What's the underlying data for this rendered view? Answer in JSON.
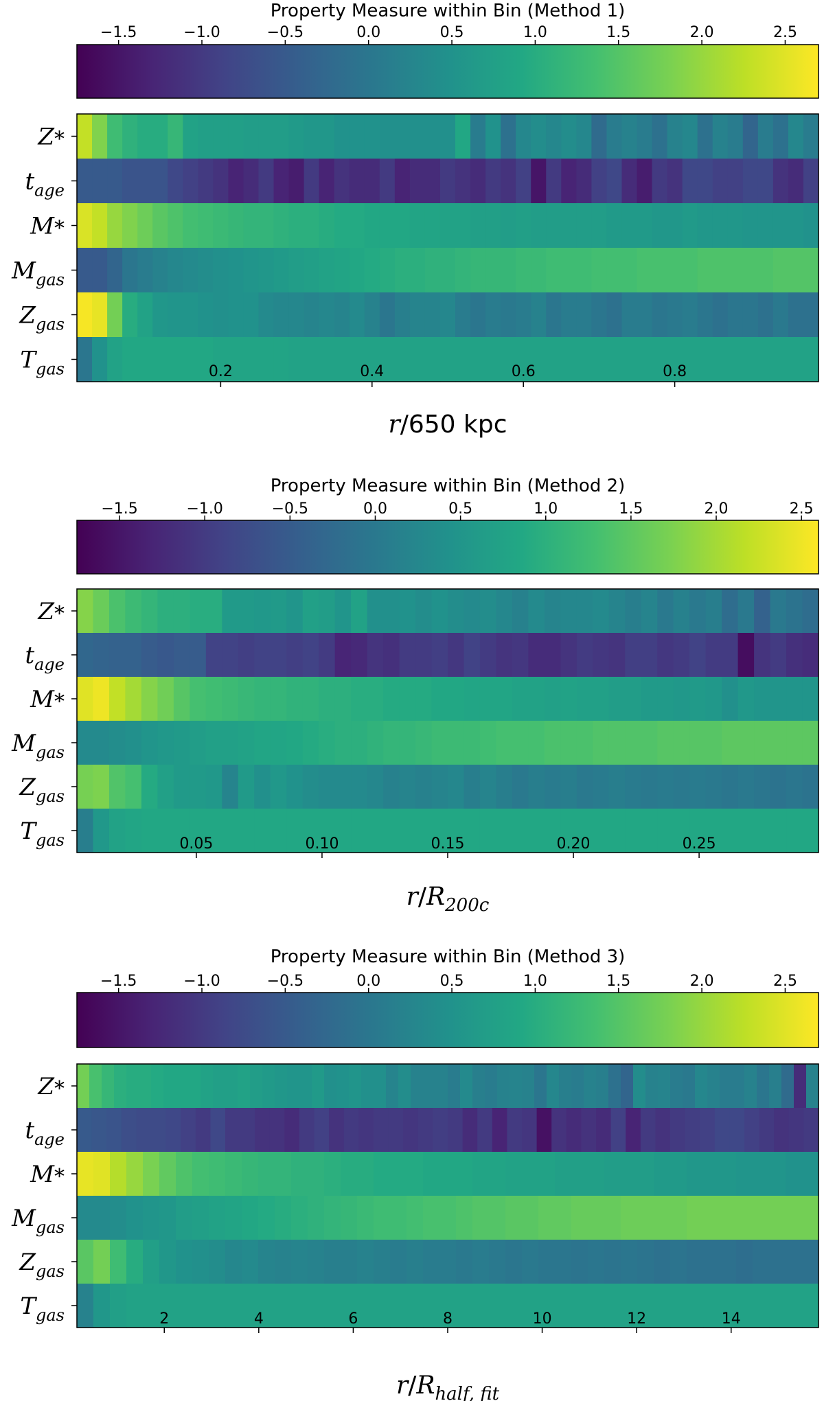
{
  "chart_data": [
    {
      "type": "heatmap",
      "title": "Property Measure within Bin (Method 1)",
      "colorbar": {
        "min": -1.75,
        "max": 2.7,
        "ticks": [
          -1.5,
          -1.0,
          -0.5,
          0.0,
          0.5,
          1.0,
          1.5,
          2.0,
          2.5
        ],
        "tick_labels": [
          "−1.5",
          "−1.0",
          "−0.5",
          "0.0",
          "0.5",
          "1.0",
          "1.5",
          "2.0",
          "2.5"
        ]
      },
      "xlabel": {
        "main": "r",
        "sep": "/650 kpc",
        "sub": ""
      },
      "xlim": [
        0.01,
        0.99
      ],
      "xticks": [
        0.2,
        0.4,
        0.6,
        0.8
      ],
      "xtick_labels": [
        "0.2",
        "0.4",
        "0.6",
        "0.8"
      ],
      "rows": [
        {
          "label": "Z",
          "sub": "*",
          "values": [
            2.3,
            1.85,
            1.3,
            1.1,
            1.0,
            1.0,
            1.2,
            0.8,
            0.75,
            0.75,
            0.75,
            0.7,
            0.7,
            0.7,
            0.65,
            0.6,
            0.6,
            0.5,
            0.5,
            0.5,
            0.45,
            0.45,
            0.45,
            0.45,
            0.45,
            0.9,
            0.1,
            0.5,
            -0.1,
            0.3,
            0.4,
            0.3,
            0.4,
            0.3,
            -0.2,
            0.1,
            0.2,
            0.1,
            -0.1,
            0.2,
            0.3,
            -0.1,
            0.2,
            0.1,
            -0.3,
            0.1,
            -0.1,
            0.3,
            0.1
          ]
        },
        {
          "label": "t",
          "sub": "age",
          "values": [
            -0.5,
            -0.5,
            -0.5,
            -0.6,
            -0.6,
            -0.6,
            -0.8,
            -0.9,
            -1.0,
            -1.1,
            -1.3,
            -1.2,
            -1.0,
            -1.3,
            -1.4,
            -1.0,
            -1.3,
            -1.1,
            -1.2,
            -1.2,
            -1.0,
            -1.3,
            -1.2,
            -1.2,
            -1.0,
            -1.1,
            -1.2,
            -1.0,
            -1.1,
            -0.9,
            -1.5,
            -1.0,
            -1.3,
            -1.2,
            -0.9,
            -0.8,
            -1.2,
            -1.4,
            -1.0,
            -1.1,
            -0.8,
            -0.8,
            -0.9,
            -0.9,
            -0.8,
            -0.8,
            -1.1,
            -1.2,
            -0.9
          ]
        },
        {
          "label": "M",
          "sub": "*",
          "values": [
            2.45,
            2.3,
            2.0,
            1.85,
            1.7,
            1.55,
            1.45,
            1.35,
            1.3,
            1.25,
            1.2,
            1.15,
            1.15,
            1.1,
            1.05,
            1.05,
            1.0,
            0.95,
            0.95,
            0.9,
            0.9,
            0.9,
            0.85,
            0.85,
            0.8,
            0.8,
            0.75,
            0.75,
            0.7,
            0.75,
            0.7,
            0.7,
            0.7,
            0.7,
            0.7,
            0.65,
            0.65,
            0.65,
            0.6,
            0.6,
            0.65,
            0.6,
            0.6,
            0.6,
            0.55,
            0.55,
            0.55,
            0.55,
            0.5
          ]
        },
        {
          "label": "M",
          "sub": "gas",
          "values": [
            -0.5,
            -0.5,
            -0.3,
            0.0,
            0.1,
            0.2,
            0.3,
            0.35,
            0.4,
            0.45,
            0.5,
            0.55,
            0.6,
            0.65,
            0.7,
            0.75,
            0.8,
            0.85,
            0.9,
            0.95,
            1.0,
            1.05,
            1.05,
            1.1,
            1.1,
            1.15,
            1.2,
            1.2,
            1.2,
            1.25,
            1.25,
            1.3,
            1.3,
            1.3,
            1.35,
            1.35,
            1.35,
            1.4,
            1.4,
            1.4,
            1.4,
            1.45,
            1.45,
            1.45,
            1.45,
            1.45,
            1.5,
            1.5,
            1.5
          ]
        },
        {
          "label": "Z",
          "sub": "gas",
          "values": [
            2.65,
            2.55,
            1.75,
            1.0,
            0.8,
            0.6,
            0.55,
            0.55,
            0.5,
            0.45,
            0.5,
            0.5,
            0.35,
            0.3,
            0.3,
            0.25,
            0.3,
            0.25,
            0.35,
            0.2,
            0.0,
            0.15,
            0.25,
            0.25,
            0.3,
            0.1,
            0.0,
            0.1,
            0.05,
            0.1,
            0.2,
            0.0,
            0.1,
            0.1,
            0.0,
            -0.1,
            0.1,
            0.1,
            0.0,
            0.05,
            0.1,
            0.0,
            -0.1,
            0.0,
            0.0,
            -0.1,
            0.05,
            -0.1,
            -0.1
          ]
        },
        {
          "label": "T",
          "sub": "gas",
          "values": [
            0.0,
            0.5,
            0.8,
            0.9,
            0.9,
            0.9,
            0.9,
            0.9,
            0.9,
            0.85,
            0.85,
            0.85,
            0.85,
            0.85,
            0.8,
            0.8,
            0.8,
            0.8,
            0.8,
            0.8,
            0.8,
            0.8,
            0.8,
            0.8,
            0.8,
            0.8,
            0.8,
            0.8,
            0.8,
            0.8,
            0.8,
            0.8,
            0.8,
            0.8,
            0.8,
            0.8,
            0.8,
            0.8,
            0.8,
            0.8,
            0.8,
            0.8,
            0.8,
            0.8,
            0.8,
            0.8,
            0.8,
            0.8,
            0.8
          ]
        }
      ]
    },
    {
      "type": "heatmap",
      "title": "Property Measure within Bin (Method 2)",
      "colorbar": {
        "min": -1.75,
        "max": 2.6,
        "ticks": [
          -1.5,
          -1.0,
          -0.5,
          0.0,
          0.5,
          1.0,
          1.5,
          2.0,
          2.5
        ],
        "tick_labels": [
          "−1.5",
          "−1.0",
          "−0.5",
          "0.0",
          "0.5",
          "1.0",
          "1.5",
          "2.0",
          "2.5"
        ]
      },
      "xlabel": {
        "main": "r",
        "sep": "/",
        "sub_main": "R",
        "sub": "200c"
      },
      "xlim": [
        0.0025,
        0.2975
      ],
      "xticks": [
        0.05,
        0.1,
        0.15,
        0.2,
        0.25
      ],
      "xtick_labels": [
        "0.05",
        "0.10",
        "0.15",
        "0.20",
        "0.25"
      ],
      "rows": [
        {
          "label": "Z",
          "sub": "*",
          "values": [
            1.8,
            1.6,
            1.35,
            1.2,
            1.1,
            1.0,
            1.0,
            0.95,
            0.95,
            0.6,
            0.6,
            0.55,
            0.6,
            0.5,
            0.7,
            0.65,
            0.5,
            0.75,
            0.4,
            0.4,
            0.45,
            0.35,
            0.45,
            0.35,
            0.3,
            0.35,
            0.25,
            0.15,
            0.3,
            0.2,
            0.25,
            0.25,
            0.3,
            0.2,
            0.1,
            0.2,
            0.0,
            0.15,
            0.0,
            0.1,
            -0.2,
            0.0,
            -0.4,
            0.0,
            -0.1,
            -0.2
          ]
        },
        {
          "label": "t",
          "sub": "age",
          "values": [
            -0.3,
            -0.35,
            -0.4,
            -0.4,
            -0.5,
            -0.55,
            -0.5,
            -0.5,
            -0.9,
            -0.9,
            -0.95,
            -0.9,
            -0.9,
            -0.95,
            -0.9,
            -1.0,
            -1.3,
            -1.25,
            -1.1,
            -1.15,
            -1.0,
            -1.0,
            -0.95,
            -1.05,
            -0.9,
            -1.0,
            -1.1,
            -1.05,
            -1.2,
            -1.2,
            -1.1,
            -1.0,
            -1.05,
            -1.1,
            -0.95,
            -0.95,
            -1.05,
            -1.0,
            -0.9,
            -1.0,
            -1.0,
            -1.6,
            -1.1,
            -1.0,
            -1.15,
            -1.2
          ]
        },
        {
          "label": "M",
          "sub": "*",
          "values": [
            2.4,
            2.5,
            2.2,
            2.0,
            1.8,
            1.65,
            1.45,
            1.3,
            1.25,
            1.2,
            1.15,
            1.1,
            1.1,
            1.05,
            1.05,
            1.0,
            1.0,
            0.95,
            0.95,
            0.9,
            0.9,
            0.9,
            0.85,
            0.85,
            0.8,
            0.8,
            0.8,
            0.75,
            0.75,
            0.7,
            0.75,
            0.7,
            0.7,
            0.65,
            0.65,
            0.6,
            0.6,
            0.55,
            0.6,
            0.55,
            0.4,
            0.55,
            0.5,
            0.5,
            0.5,
            0.5
          ]
        },
        {
          "label": "M",
          "sub": "gas",
          "values": [
            0.3,
            0.3,
            0.35,
            0.4,
            0.5,
            0.55,
            0.6,
            0.65,
            0.7,
            0.7,
            0.75,
            0.8,
            0.8,
            0.85,
            0.9,
            0.95,
            1.0,
            1.0,
            1.05,
            1.1,
            1.1,
            1.15,
            1.2,
            1.2,
            1.2,
            1.25,
            1.3,
            1.3,
            1.3,
            1.35,
            1.35,
            1.35,
            1.4,
            1.4,
            1.4,
            1.4,
            1.45,
            1.45,
            1.45,
            1.45,
            1.5,
            1.5,
            1.5,
            1.5,
            1.5,
            1.5
          ]
        },
        {
          "label": "Z",
          "sub": "gas",
          "values": [
            1.7,
            1.75,
            1.4,
            1.3,
            0.9,
            0.7,
            0.6,
            0.6,
            0.55,
            0.2,
            0.6,
            0.4,
            0.55,
            0.45,
            0.35,
            0.3,
            0.3,
            0.3,
            0.25,
            0.15,
            0.2,
            0.15,
            0.2,
            0.25,
            0.1,
            0.2,
            0.1,
            0.0,
            0.1,
            0.05,
            0.1,
            0.0,
            0.05,
            0.1,
            0.05,
            0.0,
            0.05,
            0.0,
            0.05,
            0.0,
            -0.05,
            0.0,
            -0.05,
            -0.1,
            -0.05,
            -0.1
          ]
        },
        {
          "label": "T",
          "sub": "gas",
          "values": [
            0.1,
            0.55,
            0.75,
            0.8,
            0.85,
            0.85,
            0.85,
            0.85,
            0.85,
            0.85,
            0.85,
            0.85,
            0.85,
            0.85,
            0.85,
            0.85,
            0.85,
            0.85,
            0.85,
            0.85,
            0.85,
            0.85,
            0.85,
            0.85,
            0.85,
            0.85,
            0.85,
            0.85,
            0.85,
            0.85,
            0.85,
            0.85,
            0.85,
            0.85,
            0.85,
            0.85,
            0.85,
            0.85,
            0.85,
            0.85,
            0.85,
            0.85,
            0.85,
            0.85,
            0.85,
            0.85
          ]
        }
      ]
    },
    {
      "type": "heatmap",
      "title": "Property Measure within Bin (Method 3)",
      "colorbar": {
        "min": -1.75,
        "max": 2.7,
        "ticks": [
          -1.5,
          -1.0,
          -0.5,
          0.0,
          0.5,
          1.0,
          1.5,
          2.0,
          2.5
        ],
        "tick_labels": [
          "−1.5",
          "−1.0",
          "−0.5",
          "0.0",
          "0.5",
          "1.0",
          "1.5",
          "2.0",
          "2.5"
        ]
      },
      "xlabel": {
        "main": "r",
        "sep": "/",
        "sub_main": "R",
        "sub": "half, fit"
      },
      "xlim": [
        0.15,
        15.85
      ],
      "xticks": [
        2,
        4,
        6,
        8,
        10,
        12,
        14
      ],
      "xtick_labels": [
        "2",
        "4",
        "6",
        "8",
        "10",
        "12",
        "14"
      ],
      "rows": [
        {
          "label": "Z",
          "sub": "*",
          "values": [
            1.75,
            1.4,
            1.2,
            1.05,
            1.0,
            1.0,
            0.95,
            0.9,
            0.9,
            0.9,
            0.8,
            0.75,
            0.75,
            0.8,
            0.7,
            0.65,
            0.6,
            0.55,
            0.55,
            0.65,
            0.45,
            0.5,
            0.55,
            0.45,
            0.45,
            0.25,
            0.4,
            0.2,
            0.2,
            0.2,
            0.1,
            0.35,
            0.15,
            0.1,
            0.2,
            0.25,
            0.2,
            0.0,
            0.3,
            0.15,
            0.1,
            0.2,
            0.15,
            -0.1,
            -0.3,
            0.4,
            0.2,
            0.25,
            0.1,
            0.05,
            0.3,
            0.2,
            0.1,
            0.1,
            0.2,
            0.0,
            0.15,
            -0.2,
            -1.2,
            0.2
          ]
        },
        {
          "label": "t",
          "sub": "age",
          "values": [
            -0.5,
            -0.55,
            -0.6,
            -0.7,
            -0.75,
            -0.75,
            -0.8,
            -0.9,
            -1.0,
            -0.8,
            -1.0,
            -1.0,
            -1.1,
            -1.1,
            -1.2,
            -1.0,
            -0.9,
            -1.1,
            -1.0,
            -1.05,
            -1.0,
            -1.0,
            -1.05,
            -1.0,
            -0.95,
            -1.0,
            -1.2,
            -1.0,
            -1.3,
            -1.0,
            -1.05,
            -1.55,
            -1.1,
            -1.2,
            -1.1,
            -1.2,
            -0.9,
            -1.3,
            -1.0,
            -1.1,
            -1.0,
            -0.95,
            -0.9,
            -0.8,
            -0.8,
            -0.9,
            -1.0,
            -1.1,
            -1.05,
            -1.0
          ]
        },
        {
          "label": "M",
          "sub": "*",
          "values": [
            2.55,
            2.5,
            2.2,
            2.0,
            1.8,
            1.6,
            1.45,
            1.35,
            1.3,
            1.25,
            1.2,
            1.15,
            1.15,
            1.1,
            1.1,
            1.05,
            1.0,
            1.0,
            0.95,
            0.95,
            0.95,
            0.9,
            0.9,
            0.9,
            0.85,
            0.85,
            0.8,
            0.8,
            0.8,
            0.75,
            0.75,
            0.75,
            0.7,
            0.7,
            0.7,
            0.65,
            0.65,
            0.6,
            0.6,
            0.6,
            0.55,
            0.55,
            0.55,
            0.5,
            0.5
          ]
        },
        {
          "label": "M",
          "sub": "gas",
          "values": [
            0.35,
            0.35,
            0.4,
            0.5,
            0.55,
            0.6,
            0.7,
            0.75,
            0.8,
            0.85,
            0.9,
            0.95,
            1.0,
            1.05,
            1.1,
            1.15,
            1.2,
            1.25,
            1.3,
            1.3,
            1.35,
            1.4,
            1.4,
            1.45,
            1.5,
            1.5,
            1.55,
            1.55,
            1.6,
            1.6,
            1.65,
            1.65,
            1.65,
            1.7,
            1.7,
            1.7,
            1.7,
            1.75,
            1.75,
            1.75,
            1.75,
            1.75,
            1.75,
            1.75,
            1.75
          ]
        },
        {
          "label": "Z",
          "sub": "gas",
          "values": [
            1.55,
            1.75,
            1.3,
            1.0,
            0.75,
            0.6,
            0.5,
            0.45,
            0.4,
            0.3,
            0.35,
            0.25,
            0.2,
            0.25,
            0.2,
            0.15,
            0.15,
            0.2,
            0.15,
            0.1,
            0.15,
            0.1,
            0.1,
            0.05,
            0.1,
            0.05,
            0.0,
            0.05,
            0.0,
            0.0,
            -0.05,
            0.0,
            -0.05,
            0.0,
            -0.05,
            -0.1,
            -0.05,
            -0.1,
            -0.1,
            -0.1,
            -0.15,
            -0.1,
            -0.1,
            -0.1,
            -0.1
          ]
        },
        {
          "label": "T",
          "sub": "gas",
          "values": [
            0.2,
            0.6,
            0.75,
            0.8,
            0.8,
            0.8,
            0.8,
            0.8,
            0.8,
            0.8,
            0.8,
            0.8,
            0.8,
            0.8,
            0.8,
            0.8,
            0.8,
            0.8,
            0.8,
            0.8,
            0.8,
            0.8,
            0.8,
            0.8,
            0.8,
            0.8,
            0.8,
            0.8,
            0.8,
            0.8,
            0.8,
            0.8,
            0.8,
            0.8,
            0.8,
            0.8,
            0.8,
            0.8,
            0.8,
            0.8,
            0.8,
            0.8,
            0.8,
            0.8,
            0.8
          ]
        }
      ]
    }
  ]
}
